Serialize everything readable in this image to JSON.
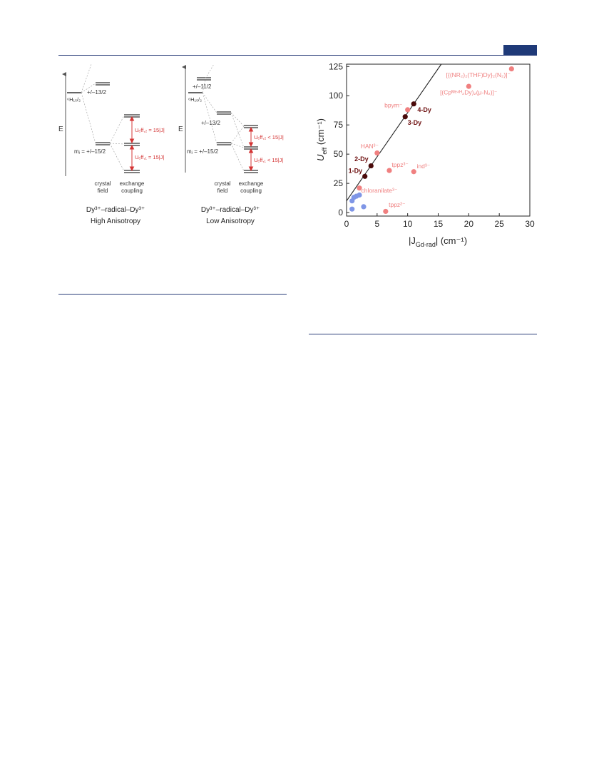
{
  "header": {
    "badge_color": "#1f3a78",
    "rule_color": "#2b3f7a"
  },
  "diagram_left": {
    "e_label": "E",
    "term_label": "⁶H₁₅/₂",
    "level_upper": "+/–13/2",
    "mj_label": "mⱼ = +/–15/2",
    "ueff2": "Uₑff,₂ = 15|J|",
    "ueff1": "Uₑff,₁ = 15|J|",
    "col_crystal": [
      "crystal",
      "field"
    ],
    "col_exchange": [
      "exchange",
      "coupling"
    ],
    "caption_line1": "Dy³⁺–radical–Dy³⁺",
    "caption_line2": "High Anisotropy"
  },
  "diagram_right": {
    "e_label": "E",
    "term_label": "⁶H₁₅/₂",
    "level_top": "+/–11/2",
    "level_mid": "+/–13/2",
    "mj_label": "mⱼ = +/–15/2",
    "ueff2": "Uₑff,₂ < 15|J|",
    "ueff1": "Uₑff,₁ < 15|J|",
    "col_crystal": [
      "crystal",
      "field"
    ],
    "col_exchange": [
      "exchange",
      "coupling"
    ],
    "caption_line1": "Dy³⁺–radical–Dy³⁺",
    "caption_line2": "Low Anisotropy"
  },
  "chart_data": {
    "type": "scatter",
    "xlabel": "|J",
    "xlabel_sub": "Gd-rad",
    "xlabel_end": "| (cm⁻¹)",
    "ylabel": "U",
    "ylabel_sub": "eff",
    "ylabel_end": " (cm⁻¹)",
    "xlim": [
      0,
      30
    ],
    "ylim": [
      -3,
      127
    ],
    "xticks": [
      0,
      5,
      10,
      15,
      20,
      25,
      30
    ],
    "yticks": [
      0,
      25,
      50,
      75,
      100,
      125
    ],
    "fit_line": {
      "x": [
        0,
        15.5
      ],
      "y": [
        10,
        127
      ]
    },
    "colors": {
      "dark": "#4a0a0a",
      "pink": "#f08080",
      "blue": "#7f96e6",
      "label_dark": "#6e1010",
      "label_pink": "#ef7f7f"
    },
    "series": [
      {
        "group": "dark",
        "points": [
          [
            3,
            31
          ],
          [
            4,
            40
          ],
          [
            9.6,
            82
          ],
          [
            11,
            93
          ]
        ]
      },
      {
        "group": "pink",
        "points": [
          [
            5,
            51
          ],
          [
            10,
            88
          ],
          [
            7,
            36
          ],
          [
            11,
            35
          ],
          [
            2.1,
            21
          ],
          [
            6.4,
            1
          ],
          [
            20,
            108
          ],
          [
            27,
            123
          ]
        ]
      },
      {
        "group": "blue",
        "points": [
          [
            0.9,
            3
          ],
          [
            0.9,
            10
          ],
          [
            1.2,
            13
          ],
          [
            1.6,
            14
          ],
          [
            2.1,
            15
          ],
          [
            2.8,
            5
          ]
        ]
      }
    ],
    "labels": [
      {
        "text": "1-Dy",
        "x": 0.3,
        "y": 34,
        "group": "dark"
      },
      {
        "text": "2-Dy",
        "x": 1.3,
        "y": 44,
        "group": "dark"
      },
      {
        "text": "3-Dy",
        "x": 10.0,
        "y": 75,
        "group": "dark"
      },
      {
        "text": "4-Dy",
        "x": 11.6,
        "y": 86,
        "group": "dark"
      },
      {
        "text": "HAN³⁻",
        "x": 2.3,
        "y": 55,
        "group": "pink"
      },
      {
        "text": "bpym⁻",
        "x": 6.2,
        "y": 90,
        "group": "pink"
      },
      {
        "text": "tppz³⁻",
        "x": 7.4,
        "y": 39,
        "group": "pink"
      },
      {
        "text": "ind³⁻",
        "x": 11.5,
        "y": 38,
        "group": "pink"
      },
      {
        "text": "chloranilate³⁻",
        "x": 2.4,
        "y": 17,
        "group": "pink"
      },
      {
        "text": "tppz²⁻",
        "x": 6.9,
        "y": 5,
        "group": "pink"
      },
      {
        "text": "[{(NR₂)₂(THF)Dy}₂(N₂)]⁻",
        "x": 16.3,
        "y": 116,
        "group": "pink"
      },
      {
        "text": "[(Cpᴹᵉ⁴ᴴ₂Dy)₂(μ-N₂)]⁻",
        "x": 15.3,
        "y": 101,
        "group": "pink"
      }
    ]
  }
}
